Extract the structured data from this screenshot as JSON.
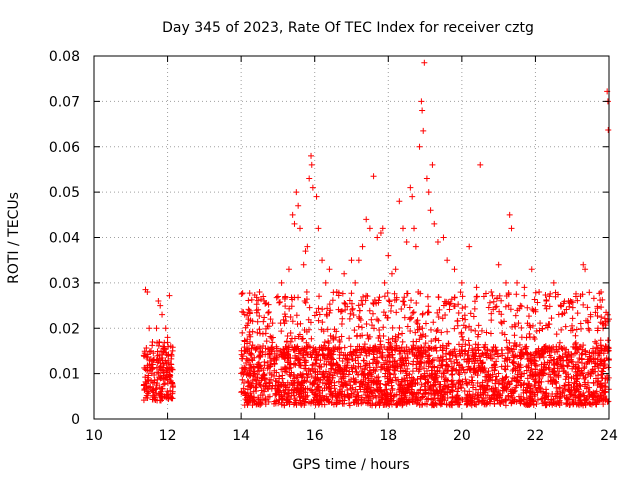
{
  "chart_data": {
    "type": "scatter",
    "title": "Day 345 of 2023, Rate Of TEC Index for receiver cztg",
    "xlabel": "GPS time / hours",
    "ylabel": "ROTI / TECUs",
    "xlim": [
      10,
      24
    ],
    "ylim": [
      0,
      0.08
    ],
    "xticks": [
      "10",
      "12",
      "14",
      "16",
      "18",
      "20",
      "22",
      "24"
    ],
    "yticks": [
      "0",
      "0.01",
      "0.02",
      "0.03",
      "0.04",
      "0.05",
      "0.06",
      "0.07",
      "0.08"
    ],
    "grid": true,
    "marker": "plus",
    "series_color": "#ff0000",
    "series": [
      {
        "name": "ROTI",
        "points": [
          [
            11.4,
            0.0285
          ],
          [
            11.45,
            0.028
          ],
          [
            11.5,
            0.02
          ],
          [
            11.55,
            0.015
          ],
          [
            11.6,
            0.012
          ],
          [
            11.7,
            0.02
          ],
          [
            11.75,
            0.026
          ],
          [
            11.8,
            0.025
          ],
          [
            11.85,
            0.023
          ],
          [
            11.9,
            0.015
          ],
          [
            11.95,
            0.02
          ],
          [
            12.0,
            0.018
          ],
          [
            12.05,
            0.0272
          ],
          [
            12.1,
            0.012
          ],
          [
            14.1,
            0.023
          ],
          [
            14.2,
            0.022
          ],
          [
            14.5,
            0.028
          ],
          [
            14.6,
            0.027
          ],
          [
            14.8,
            0.022
          ],
          [
            15.0,
            0.027
          ],
          [
            15.1,
            0.03
          ],
          [
            15.2,
            0.027
          ],
          [
            15.3,
            0.033
          ],
          [
            15.4,
            0.045
          ],
          [
            15.45,
            0.043
          ],
          [
            15.5,
            0.05
          ],
          [
            15.55,
            0.047
          ],
          [
            15.6,
            0.042
          ],
          [
            15.7,
            0.034
          ],
          [
            15.75,
            0.037
          ],
          [
            15.8,
            0.038
          ],
          [
            15.85,
            0.053
          ],
          [
            15.9,
            0.058
          ],
          [
            15.92,
            0.056
          ],
          [
            15.95,
            0.051
          ],
          [
            16.05,
            0.049
          ],
          [
            16.1,
            0.042
          ],
          [
            16.2,
            0.035
          ],
          [
            16.3,
            0.03
          ],
          [
            16.4,
            0.033
          ],
          [
            16.6,
            0.028
          ],
          [
            16.8,
            0.032
          ],
          [
            17.0,
            0.035
          ],
          [
            17.1,
            0.03
          ],
          [
            17.2,
            0.035
          ],
          [
            17.3,
            0.038
          ],
          [
            17.4,
            0.044
          ],
          [
            17.5,
            0.042
          ],
          [
            17.6,
            0.0535
          ],
          [
            17.7,
            0.04
          ],
          [
            17.8,
            0.041
          ],
          [
            17.85,
            0.042
          ],
          [
            17.9,
            0.03
          ],
          [
            18.0,
            0.036
          ],
          [
            18.1,
            0.032
          ],
          [
            18.2,
            0.033
          ],
          [
            18.3,
            0.048
          ],
          [
            18.4,
            0.042
          ],
          [
            18.5,
            0.039
          ],
          [
            18.6,
            0.051
          ],
          [
            18.65,
            0.049
          ],
          [
            18.7,
            0.042
          ],
          [
            18.75,
            0.038
          ],
          [
            18.85,
            0.06
          ],
          [
            18.9,
            0.07
          ],
          [
            18.92,
            0.068
          ],
          [
            18.95,
            0.0635
          ],
          [
            18.98,
            0.0785
          ],
          [
            19.05,
            0.053
          ],
          [
            19.1,
            0.05
          ],
          [
            19.15,
            0.046
          ],
          [
            19.2,
            0.056
          ],
          [
            19.25,
            0.043
          ],
          [
            19.35,
            0.039
          ],
          [
            19.5,
            0.04
          ],
          [
            19.6,
            0.035
          ],
          [
            19.8,
            0.033
          ],
          [
            20.0,
            0.03
          ],
          [
            20.2,
            0.038
          ],
          [
            20.4,
            0.029
          ],
          [
            20.5,
            0.056
          ],
          [
            20.6,
            0.027
          ],
          [
            20.8,
            0.028
          ],
          [
            21.0,
            0.034
          ],
          [
            21.2,
            0.03
          ],
          [
            21.3,
            0.045
          ],
          [
            21.35,
            0.042
          ],
          [
            21.5,
            0.03
          ],
          [
            21.7,
            0.029
          ],
          [
            21.9,
            0.033
          ],
          [
            22.1,
            0.028
          ],
          [
            22.3,
            0.026
          ],
          [
            22.5,
            0.03
          ],
          [
            22.7,
            0.025
          ],
          [
            22.9,
            0.026
          ],
          [
            23.1,
            0.027
          ],
          [
            23.3,
            0.034
          ],
          [
            23.35,
            0.033
          ],
          [
            23.5,
            0.023
          ],
          [
            23.7,
            0.02
          ],
          [
            23.85,
            0.021
          ],
          [
            23.95,
            0.0722
          ],
          [
            23.97,
            0.07
          ],
          [
            23.98,
            0.0637
          ],
          [
            24.0,
            0.022
          ]
        ]
      }
    ],
    "dense_bands": [
      {
        "x_start": 11.35,
        "x_end": 12.15,
        "y_low": 0.004,
        "y_high": 0.017,
        "count": 200
      },
      {
        "x_start": 14.0,
        "x_end": 24.0,
        "y_low": 0.003,
        "y_high": 0.016,
        "count": 2400
      },
      {
        "x_start": 14.0,
        "x_end": 24.0,
        "y_low": 0.014,
        "y_high": 0.028,
        "count": 650
      }
    ]
  }
}
